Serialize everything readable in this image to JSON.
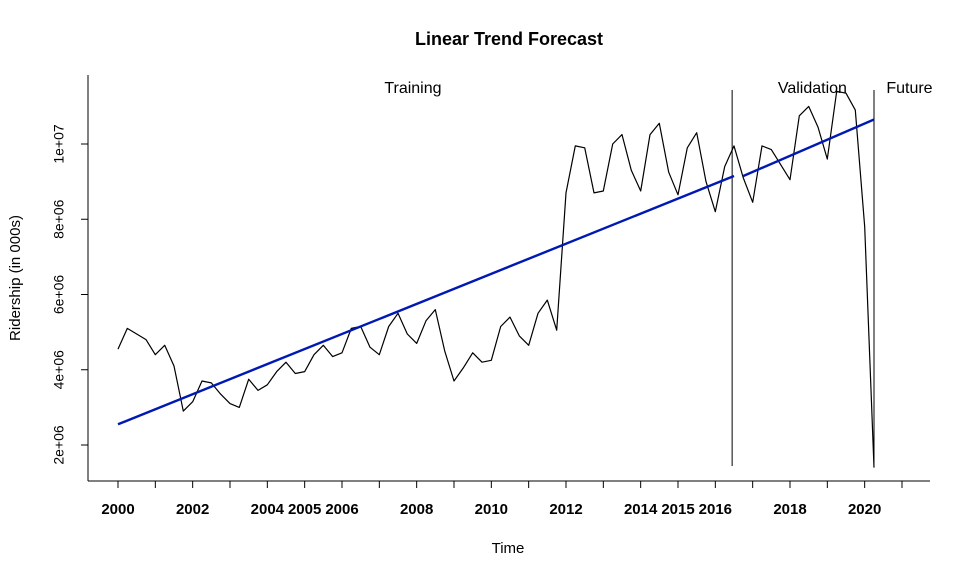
{
  "chart_data": {
    "type": "line",
    "title": "Linear Trend Forecast",
    "xlabel": "Time",
    "ylabel": "Ridership (in 000s)",
    "xlim": [
      1999.2,
      2021.8
    ],
    "ylim": [
      1300000,
      11750000
    ],
    "x_ticks": [
      2000,
      2001,
      2002,
      2003,
      2004,
      2005,
      2006,
      2007,
      2008,
      2009,
      2010,
      2011,
      2012,
      2013,
      2014,
      2015,
      2016,
      2017,
      2018,
      2019,
      2020,
      2021
    ],
    "x_tick_labels": [
      {
        "x": 2000,
        "label": "2000"
      },
      {
        "x": 2002,
        "label": "2002"
      },
      {
        "x": 2004,
        "label": "2004"
      },
      {
        "x": 2005,
        "label": "2005"
      },
      {
        "x": 2006,
        "label": "2006"
      },
      {
        "x": 2008,
        "label": "2008"
      },
      {
        "x": 2010,
        "label": "2010"
      },
      {
        "x": 2012,
        "label": "2012"
      },
      {
        "x": 2014,
        "label": "2014"
      },
      {
        "x": 2015,
        "label": "2015"
      },
      {
        "x": 2016,
        "label": "2016"
      },
      {
        "x": 2018,
        "label": "2018"
      },
      {
        "x": 2020,
        "label": "2020"
      }
    ],
    "y_ticks": [
      2000000,
      4000000,
      6000000,
      8000000,
      10000000
    ],
    "y_tick_labels": [
      "2e+06",
      "4e+06",
      "6e+06",
      "8e+06",
      "1e+07"
    ],
    "grid": false,
    "regions": [
      {
        "label": "Training",
        "x_center": 2007.9
      },
      {
        "label": "Validation",
        "x_center": 2018.6
      },
      {
        "label": "Future",
        "x_center": 2021.2
      }
    ],
    "split_lines_x": [
      16.45,
      20.25
    ],
    "series": [
      {
        "role": "actual",
        "color": "#000000",
        "x": [
          2000.0,
          2000.25,
          2000.5,
          2000.75,
          2001.0,
          2001.25,
          2001.5,
          2001.75,
          2002.0,
          2002.25,
          2002.5,
          2002.75,
          2003.0,
          2003.25,
          2003.5,
          2003.75,
          2004.0,
          2004.25,
          2004.5,
          2004.75,
          2005.0,
          2005.25,
          2005.5,
          2005.75,
          2006.0,
          2006.25,
          2006.5,
          2006.75,
          2007.0,
          2007.25,
          2007.5,
          2007.75,
          2008.0,
          2008.25,
          2008.5,
          2008.75,
          2009.0,
          2009.25,
          2009.5,
          2009.75,
          2010.0,
          2010.25,
          2010.5,
          2010.75,
          2011.0,
          2011.25,
          2011.5,
          2011.75,
          2012.0,
          2012.25,
          2012.5,
          2012.75,
          2013.0,
          2013.25,
          2013.5,
          2013.75,
          2014.0,
          2014.25,
          2014.5,
          2014.75,
          2015.0,
          2015.25,
          2015.5,
          2015.75,
          2016.0,
          2016.25,
          2016.5,
          2016.75,
          2017.0,
          2017.25,
          2017.5,
          2017.75,
          2018.0,
          2018.25,
          2018.5,
          2018.75,
          2019.0,
          2019.25,
          2019.5,
          2019.75,
          2020.0,
          2020.25
        ],
        "values": [
          4550000,
          5100000,
          4950000,
          4800000,
          4400000,
          4650000,
          4100000,
          2900000,
          3150000,
          3700000,
          3650000,
          3350000,
          3100000,
          3000000,
          3750000,
          3450000,
          3600000,
          3950000,
          4200000,
          3900000,
          3950000,
          4400000,
          4650000,
          4350000,
          4450000,
          5100000,
          5150000,
          4600000,
          4400000,
          5150000,
          5500000,
          4950000,
          4700000,
          5300000,
          5600000,
          4500000,
          3700000,
          4050000,
          4450000,
          4200000,
          4250000,
          5150000,
          5400000,
          4900000,
          4650000,
          5500000,
          5850000,
          5050000,
          8700000,
          9950000,
          9900000,
          8700000,
          8750000,
          10000000,
          10250000,
          9300000,
          8750000,
          10250000,
          10550000,
          9250000,
          8650000,
          9900000,
          10300000,
          9000000,
          8200000,
          9400000,
          9950000,
          9100000,
          8450000,
          9950000,
          9850000,
          9450000,
          9050000,
          10750000,
          11000000,
          10450000,
          9600000,
          11400000,
          11350000,
          10900000,
          7800000,
          1400000
        ]
      },
      {
        "role": "trend-fitted",
        "color": "#0019b3",
        "x": [
          2000.0,
          2016.5
        ],
        "values": [
          2550000,
          9150000
        ]
      },
      {
        "role": "trend-forecast",
        "color": "#0019b3",
        "x": [
          2016.75,
          2020.25
        ],
        "values": [
          9150000,
          10650000
        ]
      }
    ]
  }
}
